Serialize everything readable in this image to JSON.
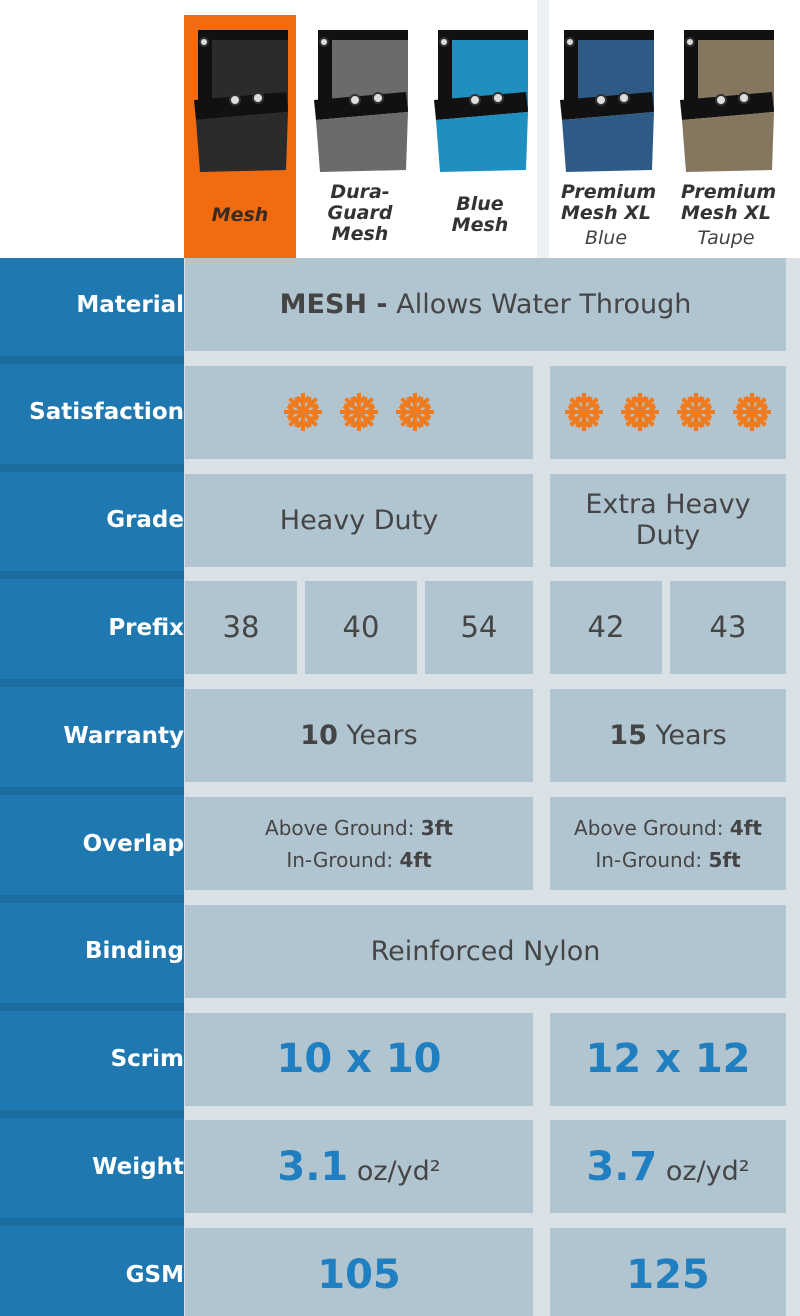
{
  "products": [
    {
      "name": "Mesh",
      "color": "#2b2b2b",
      "highlighted": true
    },
    {
      "name": "Dura-Guard Mesh",
      "color": "#6b6b6b"
    },
    {
      "name": "Blue Mesh",
      "color": "#1f8fbf"
    },
    {
      "name": "Premium Mesh XL",
      "variant": "Blue",
      "color": "#2e5b86"
    },
    {
      "name": "Premium Mesh XL",
      "variant": "Taupe",
      "color": "#857660"
    }
  ],
  "rows": [
    {
      "label": "Material",
      "cells": [
        {
          "bold": "MESH -",
          "text": "Allows Water Through"
        }
      ]
    },
    {
      "label": "Satisfaction",
      "cells": [
        {
          "rating": 3
        },
        {
          "rating": 4
        }
      ]
    },
    {
      "label": "Grade",
      "cells": [
        {
          "text": "Heavy Duty"
        },
        {
          "text": "Extra Heavy Duty"
        }
      ]
    },
    {
      "label": "Prefix",
      "cells": [
        {
          "text": 38
        },
        {
          "text": 40
        },
        {
          "text": 54
        },
        {
          "text": 42
        },
        {
          "text": 43
        }
      ]
    },
    {
      "label": "Warranty",
      "cells": [
        {
          "bold": "10",
          "text": "Years"
        },
        {
          "bold": "15",
          "text": "Years"
        }
      ]
    },
    {
      "label": "Overlap",
      "cells": [
        {
          "lines": [
            {
              "text": "Above Ground:",
              "bold": "3ft"
            },
            {
              "text": "In-Ground:",
              "bold": "4ft"
            }
          ]
        },
        {
          "lines": [
            {
              "text": "Above Ground:",
              "bold": "4ft"
            },
            {
              "text": "In-Ground:",
              "bold": "5ft"
            }
          ]
        }
      ]
    },
    {
      "label": "Binding",
      "cells": [
        {
          "text": "Reinforced Nylon"
        }
      ]
    },
    {
      "label": "Scrim",
      "cells": [
        {
          "highlight": "10 x 10"
        },
        {
          "highlight": "12 x 12"
        }
      ]
    },
    {
      "label": "Weight",
      "cells": [
        {
          "highlight": "3.1",
          "text": "oz/yd²"
        },
        {
          "highlight": "3.7",
          "text": "oz/yd²"
        }
      ]
    },
    {
      "label": "GSM",
      "cells": [
        {
          "highlight": 105
        },
        {
          "highlight": 125
        }
      ]
    }
  ]
}
